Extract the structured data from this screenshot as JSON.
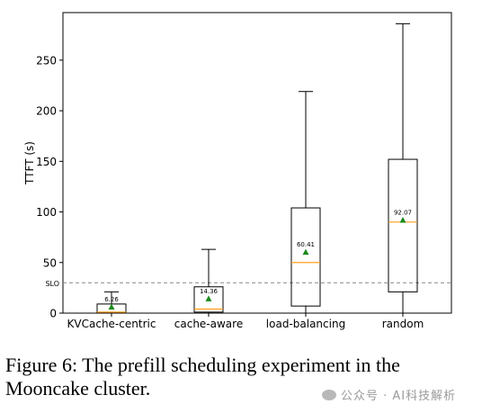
{
  "chart_data": {
    "type": "box",
    "ylabel": "TTFT (s)",
    "ylim": [
      0,
      297
    ],
    "yticks": [
      0,
      50,
      100,
      150,
      200,
      250
    ],
    "grid": false,
    "slo": {
      "label": "SLO",
      "value": 30
    },
    "categories": [
      "KVCache-centric",
      "cache-aware",
      "load-balancing",
      "random"
    ],
    "boxes": [
      {
        "whisker_low": 0,
        "q1": 0,
        "median": 1,
        "q3": 9,
        "whisker_high": 21,
        "mean": 6.26,
        "mean_label": "6.26"
      },
      {
        "whisker_low": 0,
        "q1": 1,
        "median": 4,
        "q3": 26,
        "whisker_high": 63,
        "mean": 14.36,
        "mean_label": "14.36"
      },
      {
        "whisker_low": 0,
        "q1": 7,
        "median": 50,
        "q3": 104,
        "whisker_high": 219,
        "mean": 60.41,
        "mean_label": "60.41"
      },
      {
        "whisker_low": 0,
        "q1": 21,
        "median": 90,
        "q3": 152,
        "whisker_high": 286,
        "mean": 92.07,
        "mean_label": "92.07"
      }
    ],
    "colors": {
      "box": "#000000",
      "median": "#ff9f1c",
      "mean": "#1a8a1a",
      "slo_line": "#888888"
    }
  },
  "caption": "Figure 6: The prefill scheduling experiment in the Mooncake cluster.",
  "watermark": "公众号 · AI科技解析"
}
